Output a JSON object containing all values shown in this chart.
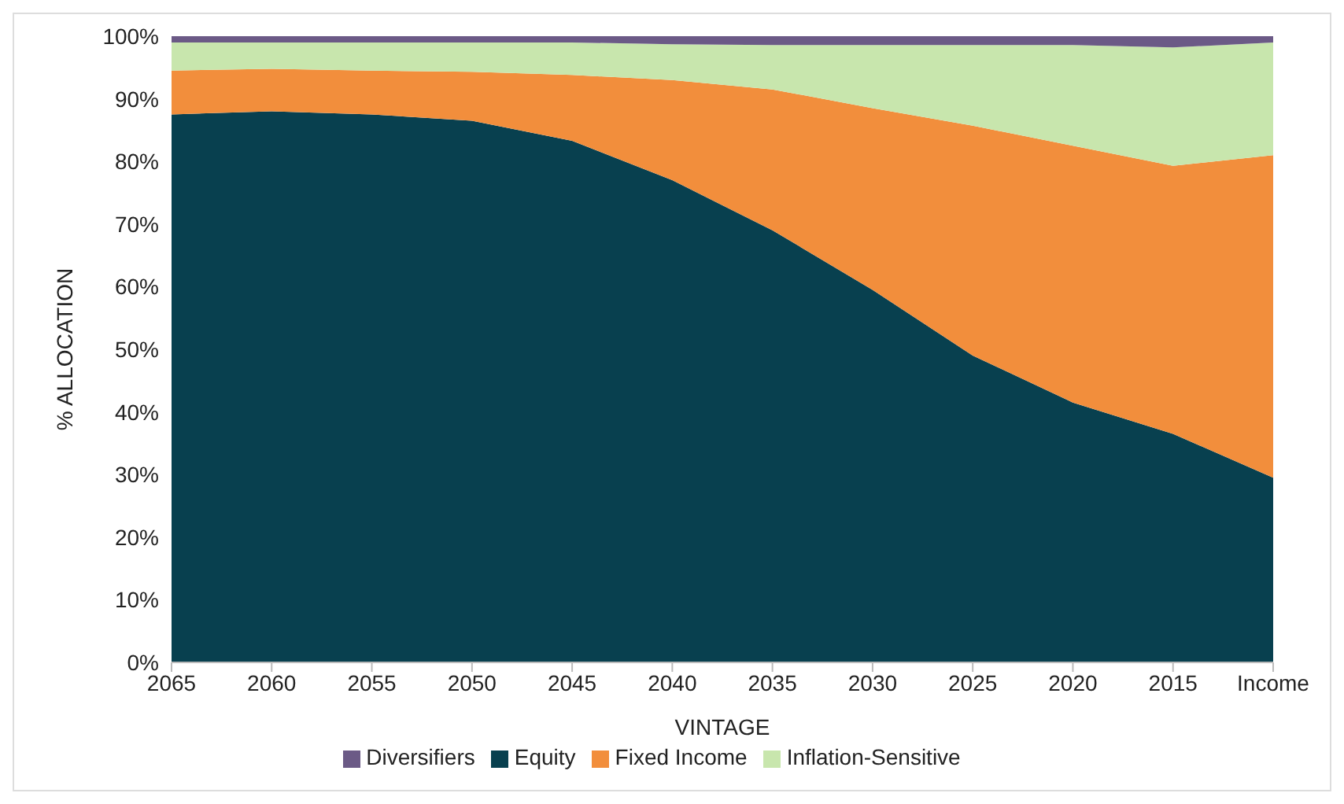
{
  "chart_data": {
    "type": "area",
    "stacked": true,
    "xlabel": "VINTAGE",
    "ylabel": "% ALLOCATION",
    "categories": [
      "2065",
      "2060",
      "2055",
      "2050",
      "2045",
      "2040",
      "2035",
      "2030",
      "2025",
      "2020",
      "2015",
      "Income"
    ],
    "series": [
      {
        "name": "Equity",
        "color": "#08404f",
        "values": [
          87.5,
          88,
          87.5,
          86.5,
          83.3,
          77,
          69,
          59.5,
          49,
          41.5,
          36.5,
          29.5
        ]
      },
      {
        "name": "Fixed Income",
        "color": "#f28e3c",
        "values": [
          7,
          6.8,
          7,
          7.8,
          10.5,
          16,
          22.5,
          29,
          36.7,
          41,
          42.8,
          51.5
        ]
      },
      {
        "name": "Inflation-Sensitive",
        "color": "#c8e6ad",
        "values": [
          4.5,
          4.2,
          4.5,
          4.7,
          5.2,
          5.7,
          7.1,
          10.1,
          12.9,
          16.1,
          18.9,
          18
        ]
      },
      {
        "name": "Diversifiers",
        "color": "#6b5a86",
        "values": [
          1,
          1,
          1,
          1,
          1,
          1.3,
          1.4,
          1.4,
          1.4,
          1.4,
          1.8,
          1
        ]
      }
    ],
    "ylim": [
      0,
      100
    ],
    "yticks": [
      {
        "value": 0,
        "label": "0%"
      },
      {
        "value": 10,
        "label": "10%"
      },
      {
        "value": 20,
        "label": "20%"
      },
      {
        "value": 30,
        "label": "30%"
      },
      {
        "value": 40,
        "label": "40%"
      },
      {
        "value": 50,
        "label": "50%"
      },
      {
        "value": 60,
        "label": "60%"
      },
      {
        "value": 70,
        "label": "70%"
      },
      {
        "value": 80,
        "label": "80%"
      },
      {
        "value": 90,
        "label": "90%"
      },
      {
        "value": 100,
        "label": "100%"
      }
    ],
    "grid": false,
    "legend": "bottom"
  }
}
